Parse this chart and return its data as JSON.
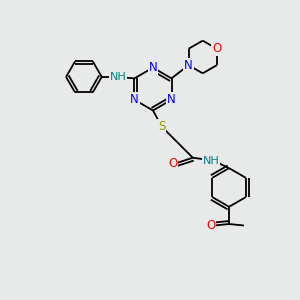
{
  "bg_color": "#e8eaea",
  "atom_colors": {
    "N": "#0000ff",
    "O": "#ff0000",
    "S": "#999900",
    "C": "#000000",
    "H": "#008080"
  },
  "bond_color": "#000000",
  "font_size": 8.5,
  "small_font": 7,
  "lw": 1.3
}
